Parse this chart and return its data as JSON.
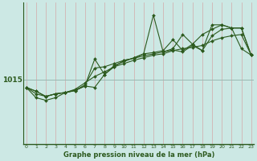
{
  "title": "Graphe pression niveau de la mer (hPa)",
  "background_color": "#cce8e4",
  "line_color": "#2d5a1e",
  "grid_color_v": "#d4a8a8",
  "grid_color_h": "#9ab8b2",
  "x_ticks": [
    0,
    1,
    2,
    3,
    4,
    5,
    6,
    7,
    8,
    9,
    10,
    11,
    12,
    13,
    14,
    15,
    16,
    17,
    18,
    19,
    20,
    21,
    22,
    23
  ],
  "y_ref": 1015,
  "series": [
    [
      1013.8,
      1013.2,
      1012.4,
      1012.8,
      1013.0,
      1013.3,
      1014.2,
      1016.8,
      1017.0,
      1017.5,
      1018.0,
      1018.3,
      1018.7,
      1019.0,
      1019.3,
      1019.6,
      1019.3,
      1020.3,
      1019.5,
      1021.8,
      1022.8,
      1023.0,
      1019.8,
      1018.8
    ],
    [
      1013.8,
      1012.2,
      1011.8,
      1012.2,
      1013.0,
      1013.4,
      1014.0,
      1013.8,
      1015.8,
      1017.2,
      1017.8,
      1018.4,
      1019.0,
      1019.2,
      1019.5,
      1021.2,
      1019.5,
      1020.5,
      1022.0,
      1022.8,
      1023.5,
      1023.0,
      1023.0,
      1018.8
    ],
    [
      1013.8,
      1012.8,
      1012.4,
      1012.8,
      1013.0,
      1013.3,
      1014.0,
      1018.2,
      1015.8,
      1017.0,
      1018.0,
      1018.3,
      1019.0,
      1025.0,
      1019.3,
      1019.8,
      1022.0,
      1020.5,
      1019.5,
      1023.5,
      1023.5,
      1023.0,
      1023.0,
      1018.8
    ],
    [
      1013.8,
      1013.2,
      1012.4,
      1012.8,
      1013.0,
      1013.5,
      1014.5,
      1015.5,
      1016.2,
      1017.0,
      1017.5,
      1018.0,
      1018.4,
      1018.8,
      1019.0,
      1019.5,
      1019.8,
      1020.0,
      1020.3,
      1021.0,
      1021.5,
      1021.8,
      1022.0,
      1018.8
    ]
  ],
  "ylim": [
    1005.0,
    1027.0
  ],
  "xlim": [
    0,
    23
  ]
}
